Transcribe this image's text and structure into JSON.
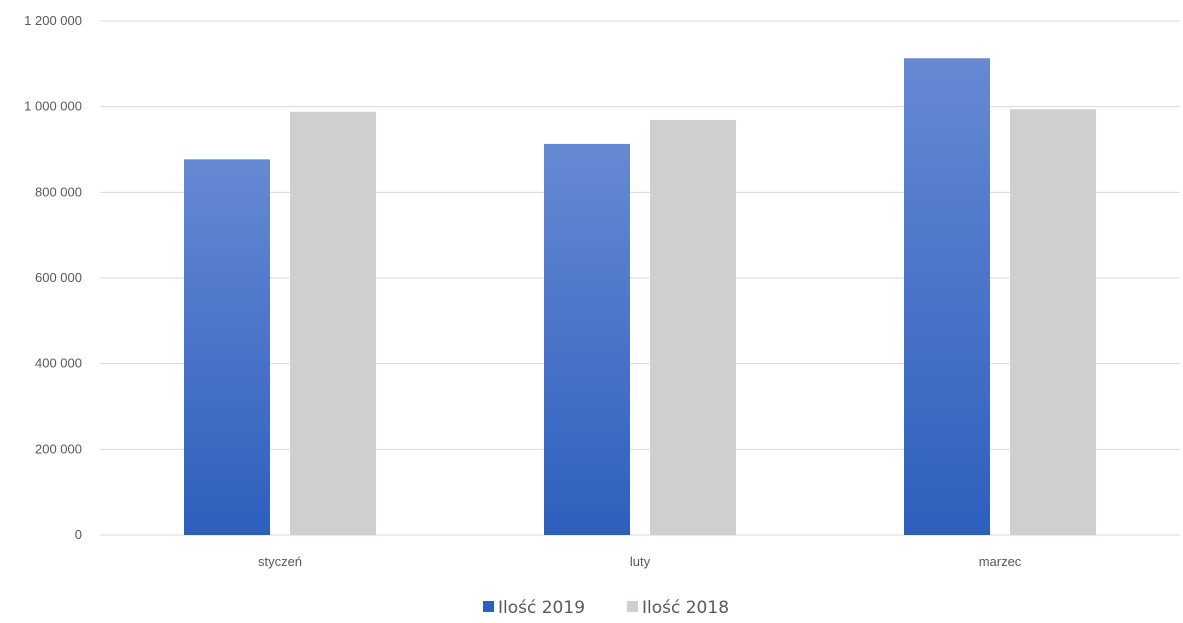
{
  "chart_data": {
    "type": "bar",
    "title": "",
    "xlabel": "",
    "ylabel": "",
    "categories": [
      "styczeń",
      "luty",
      "marzec"
    ],
    "series": [
      {
        "name": "Ilość 2019",
        "values": [
          877000,
          913000,
          1113000
        ],
        "color": "#3a68c4"
      },
      {
        "name": "Ilość 2018",
        "values": [
          988000,
          969000,
          994000
        ],
        "color": "#d0cecf"
      }
    ],
    "ylim": [
      0,
      1200000
    ],
    "yticks": [
      0,
      200000,
      400000,
      600000,
      800000,
      1000000,
      1200000
    ],
    "ytick_labels": [
      "0",
      "200 000",
      "400 000",
      "600 000",
      "800 000",
      "1 000 000",
      "1 200 000"
    ],
    "grid": true,
    "legend_position": "bottom"
  },
  "colors": {
    "series_2019_top": "#6689d3",
    "series_2019_bottom": "#2e5fbd",
    "series_2018": "#d0cecf",
    "gridline": "#d9d9d9",
    "axis_text": "#595959"
  }
}
